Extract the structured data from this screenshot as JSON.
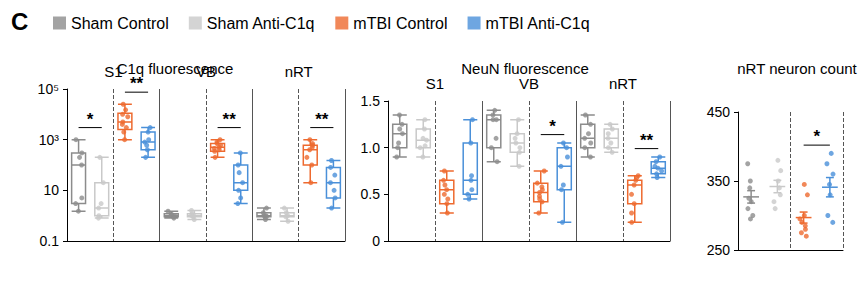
{
  "panel_label": "C",
  "chart_data": [
    {
      "type": "boxplot",
      "title": "C1q fluorescence",
      "legend": "top",
      "log": "y",
      "grid": false,
      "categories": [
        "S1",
        "VB",
        "nRT"
      ],
      "ylim": [
        0.1,
        100000
      ],
      "yticks": [
        0.1,
        10,
        {
          "value": 1000,
          "label": "10³"
        },
        {
          "value": 100000,
          "label": "10⁵"
        }
      ],
      "series": [
        {
          "name": "Sham Control",
          "color": "#8c8c8c",
          "box": [
            [
              1.5,
              3,
              100,
              300,
              1000
            ],
            [
              0.8,
              0.9,
              1,
              1.2,
              1.5
            ],
            [
              0.7,
              0.9,
              1,
              1.3,
              2
            ]
          ],
          "values": [
            [
              1000,
              300,
              200,
              100,
              5,
              3,
              1.5
            ],
            [
              1.5,
              1.2,
              1,
              1,
              0.9,
              0.8
            ],
            [
              2,
              1.3,
              1,
              1,
              0.9,
              0.7
            ]
          ]
        },
        {
          "name": "Sham Anti-C1q",
          "color": "#c9c9c9",
          "box": [
            [
              0.8,
              1,
              2,
              20,
              200
            ],
            [
              0.7,
              0.9,
              1,
              1.2,
              1.6
            ],
            [
              0.6,
              0.9,
              1,
              1.3,
              2
            ]
          ],
          "values": [
            [
              200,
              20,
              3,
              2,
              1,
              0.8
            ],
            [
              1.6,
              1.2,
              1,
              1,
              0.9,
              0.7
            ],
            [
              2,
              1.3,
              1,
              0.9,
              0.6
            ]
          ]
        },
        {
          "name": "mTBI Control",
          "color": "#ee6a2f",
          "box": [
            [
              1000,
              2500,
              5000,
              11000,
              25000
            ],
            [
              200,
              350,
              500,
              700,
              1000
            ],
            [
              20,
              100,
              400,
              600,
              1000
            ]
          ],
          "values": [
            [
              25000,
              15000,
              10000,
              8000,
              5000,
              4000,
              3000,
              2000,
              1000
            ],
            [
              1000,
              800,
              700,
              600,
              500,
              450,
              400,
              350,
              200
            ],
            [
              1000,
              700,
              600,
              500,
              400,
              200,
              100,
              20
            ]
          ]
        },
        {
          "name": "mTBI Anti-C1q",
          "color": "#4a90d9",
          "box": [
            [
              200,
              400,
              800,
              2000,
              3000
            ],
            [
              3,
              10,
              20,
              100,
              300
            ],
            [
              2,
              5,
              20,
              80,
              150
            ]
          ],
          "values": [
            [
              3000,
              2000,
              1000,
              800,
              600,
              400,
              200
            ],
            [
              300,
              100,
              50,
              20,
              10,
              5,
              3
            ],
            [
              150,
              80,
              40,
              20,
              10,
              5,
              2
            ]
          ]
        }
      ],
      "annotations": [
        {
          "text": "*",
          "category": "S1",
          "between": [
            "Sham Control",
            "Sham Anti-C1q"
          ]
        },
        {
          "text": "**",
          "category": "S1",
          "between": [
            "mTBI Control",
            "mTBI Anti-C1q"
          ]
        },
        {
          "text": "**",
          "category": "VB",
          "between": [
            "mTBI Control",
            "mTBI Anti-C1q"
          ]
        },
        {
          "text": "**",
          "category": "nRT",
          "between": [
            "mTBI Control",
            "mTBI Anti-C1q"
          ]
        }
      ]
    },
    {
      "type": "boxplot",
      "title": "NeuN fluorescence",
      "grid": false,
      "categories": [
        "S1",
        "VB",
        "nRT"
      ],
      "ylim": [
        0,
        1.5
      ],
      "yticks": [
        0,
        0.5,
        {
          "value": 1,
          "label": "1.0"
        },
        1.5
      ],
      "series": [
        {
          "name": "Sham Control",
          "color": "#8c8c8c",
          "box": [
            [
              0.9,
              1.0,
              1.15,
              1.25,
              1.35
            ],
            [
              0.85,
              1.0,
              1.3,
              1.35,
              1.4
            ],
            [
              0.9,
              1.0,
              1.1,
              1.25,
              1.35
            ]
          ],
          "values": [
            [
              1.35,
              1.25,
              1.2,
              1.15,
              1.05,
              1.0,
              0.9
            ],
            [
              1.4,
              1.35,
              1.3,
              1.3,
              1.1,
              1.0,
              0.85
            ],
            [
              1.35,
              1.25,
              1.15,
              1.1,
              1.05,
              1.0,
              0.9
            ]
          ]
        },
        {
          "name": "Sham Anti-C1q",
          "color": "#c9c9c9",
          "box": [
            [
              0.9,
              1.0,
              1.08,
              1.2,
              1.3
            ],
            [
              0.8,
              0.95,
              1.05,
              1.15,
              1.3
            ],
            [
              0.95,
              1.0,
              1.1,
              1.2,
              1.25
            ]
          ],
          "values": [
            [
              1.3,
              1.2,
              1.1,
              1.08,
              1.02,
              1.0,
              0.9
            ],
            [
              1.3,
              1.15,
              1.1,
              1.05,
              1.0,
              0.95,
              0.8
            ],
            [
              1.25,
              1.2,
              1.15,
              1.1,
              1.05,
              1.0,
              0.95
            ]
          ]
        },
        {
          "name": "mTBI Control",
          "color": "#ee6a2f",
          "box": [
            [
              0.3,
              0.4,
              0.55,
              0.65,
              0.75
            ],
            [
              0.3,
              0.42,
              0.52,
              0.62,
              0.75
            ],
            [
              0.2,
              0.4,
              0.6,
              0.65,
              0.7
            ]
          ],
          "values": [
            [
              0.75,
              0.65,
              0.6,
              0.55,
              0.5,
              0.45,
              0.4,
              0.3
            ],
            [
              0.75,
              0.62,
              0.58,
              0.55,
              0.52,
              0.48,
              0.45,
              0.42,
              0.3
            ],
            [
              0.7,
              0.68,
              0.65,
              0.6,
              0.5,
              0.4,
              0.3,
              0.2
            ]
          ]
        },
        {
          "name": "mTBI Anti-C1q",
          "color": "#4a90d9",
          "box": [
            [
              0.45,
              0.5,
              0.65,
              1.05,
              1.3
            ],
            [
              0.2,
              0.55,
              0.8,
              1.0,
              1.05
            ],
            [
              0.68,
              0.72,
              0.78,
              0.85,
              0.9
            ]
          ],
          "values": [
            [
              1.3,
              1.05,
              0.7,
              0.65,
              0.55,
              0.5,
              0.45
            ],
            [
              1.05,
              1.0,
              0.9,
              0.8,
              0.6,
              0.55,
              0.2
            ],
            [
              0.9,
              0.85,
              0.8,
              0.78,
              0.75,
              0.72,
              0.68
            ]
          ]
        }
      ],
      "annotations": [
        {
          "text": "*",
          "category": "VB",
          "between": [
            "mTBI Control",
            "mTBI Anti-C1q"
          ]
        },
        {
          "text": "**",
          "category": "nRT",
          "between": [
            "mTBI Control",
            "mTBI Anti-C1q"
          ]
        }
      ]
    },
    {
      "type": "scatter",
      "title": "nRT neuron count",
      "grid": false,
      "ylim": [
        250,
        450
      ],
      "yticks": [
        250,
        350,
        450
      ],
      "series": [
        {
          "name": "Sham Control",
          "color": "#8c8c8c",
          "values": [
            375,
            350,
            340,
            325,
            320,
            310,
            300,
            295
          ],
          "mean": 327,
          "sem": 9
        },
        {
          "name": "Sham Anti-C1q",
          "color": "#c9c9c9",
          "values": [
            380,
            365,
            350,
            340,
            330,
            320,
            310
          ],
          "mean": 342,
          "sem": 9
        },
        {
          "name": "mTBI Control",
          "color": "#ee6a2f",
          "values": [
            345,
            330,
            300,
            295,
            290,
            285,
            280,
            275,
            270
          ],
          "mean": 297,
          "sem": 8
        },
        {
          "name": "mTBI Anti-C1q",
          "color": "#4a90d9",
          "values": [
            390,
            375,
            360,
            345,
            330,
            300,
            290
          ],
          "mean": 341,
          "sem": 14
        }
      ],
      "annotations": [
        {
          "text": "*",
          "between": [
            "mTBI Control",
            "mTBI Anti-C1q"
          ]
        }
      ]
    }
  ]
}
